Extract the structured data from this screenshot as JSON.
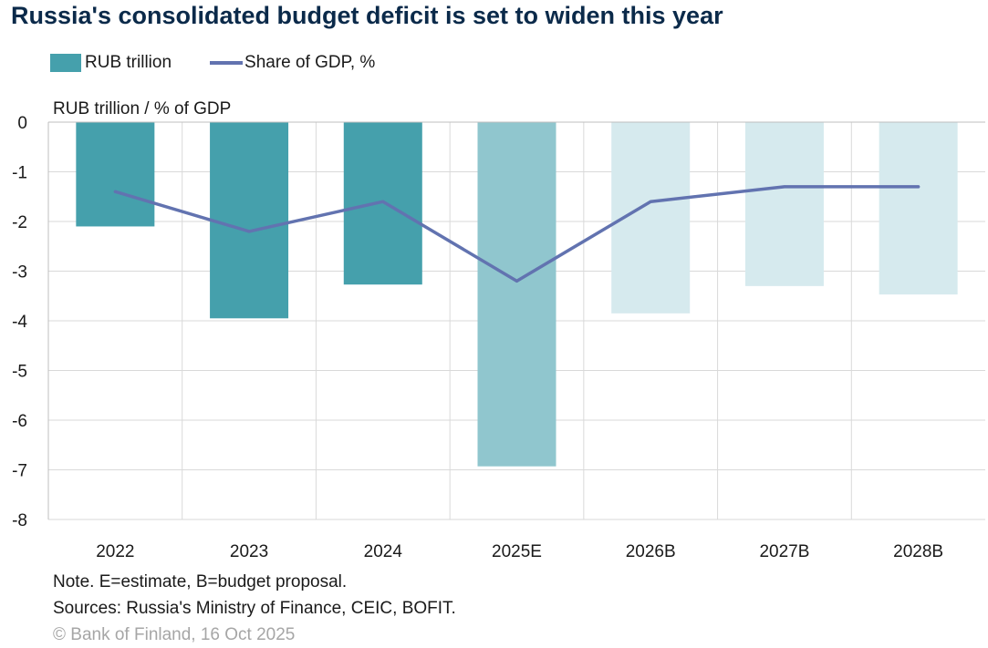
{
  "chart_data": {
    "type": "bar",
    "title": "Russia's consolidated budget deficit is set to widen this year",
    "ylabel": "RUB trillion / % of GDP",
    "categories": [
      "2022",
      "2023",
      "2024",
      "2025E",
      "2026B",
      "2027B",
      "2028B"
    ],
    "yticks": [
      "0",
      "-1",
      "-2",
      "-3",
      "-4",
      "-5",
      "-6",
      "-7",
      "-8"
    ],
    "ylim": [
      -8,
      0
    ],
    "grid": true,
    "legend_position": "top-left",
    "series": [
      {
        "name": "RUB trillion",
        "kind": "bar",
        "values": [
          -2.1,
          -3.95,
          -3.27,
          -6.93,
          -3.85,
          -3.3,
          -3.47
        ],
        "colors": [
          "#45a0ac",
          "#45a0ac",
          "#45a0ac",
          "#90c6ce",
          "#d6eaee",
          "#d6eaee",
          "#d6eaee"
        ]
      },
      {
        "name": "Share of GDP, %",
        "kind": "line",
        "values": [
          -1.4,
          -2.2,
          -1.6,
          -3.2,
          -1.6,
          -1.3,
          -1.3
        ],
        "color": "#6273b0"
      }
    ]
  },
  "notes": {
    "note": "Note. E=estimate, B=budget proposal.",
    "sources": "Sources: Russia's Ministry of Finance, CEIC, BOFIT.",
    "copyright": "© Bank of Finland, 16 Oct 2025"
  }
}
